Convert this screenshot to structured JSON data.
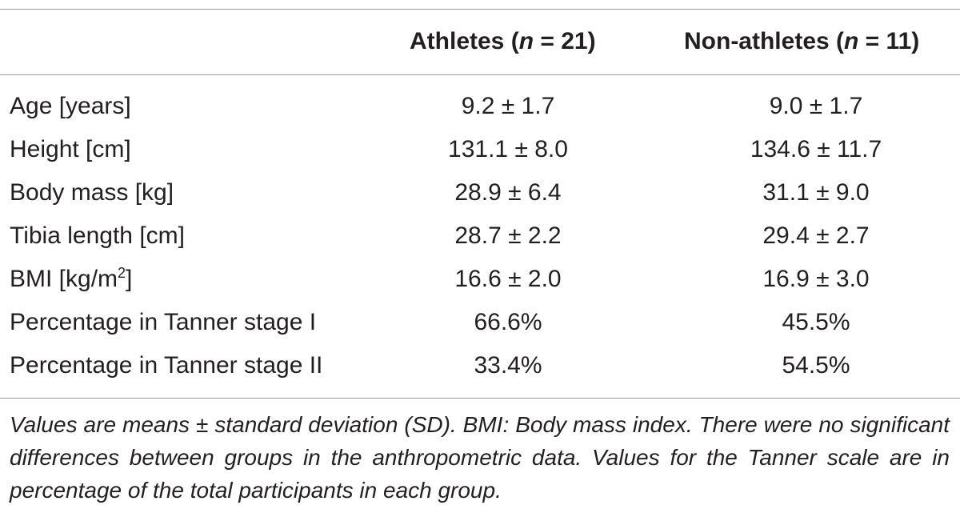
{
  "table": {
    "header": {
      "athletes_prefix": "Athletes (",
      "athletes_n_symbol": "n",
      "athletes_n_value": " = 21)",
      "nonathletes_prefix": "Non-athletes (",
      "nonathletes_n_symbol": "n",
      "nonathletes_n_value": " = 11)"
    },
    "rows": [
      {
        "label": "Age [years]",
        "athletes": "9.2 ± 1.7",
        "nonathletes": "9.0 ± 1.7"
      },
      {
        "label": "Height [cm]",
        "athletes": "131.1 ± 8.0",
        "nonathletes": "134.6 ± 11.7"
      },
      {
        "label": "Body mass [kg]",
        "athletes": "28.9 ± 6.4",
        "nonathletes": "31.1 ± 9.0"
      },
      {
        "label": "Tibia length [cm]",
        "athletes": "28.7 ± 2.2",
        "nonathletes": "29.4 ± 2.7"
      },
      {
        "label": "BMI [kg/m",
        "label_sup": "2",
        "label_suffix": "]",
        "athletes": "16.6 ± 2.0",
        "nonathletes": "16.9 ± 3.0"
      },
      {
        "label": "Percentage in Tanner stage I",
        "athletes": "66.6%",
        "nonathletes": "45.5%"
      },
      {
        "label": "Percentage in Tanner stage II",
        "athletes": "33.4%",
        "nonathletes": "54.5%"
      }
    ],
    "footnote": "Values are means ± standard deviation (SD). BMI: Body mass index. There were no significant differences between groups in the anthropometric data. Values for the Tanner scale are in percentage of the total participants in each group."
  }
}
